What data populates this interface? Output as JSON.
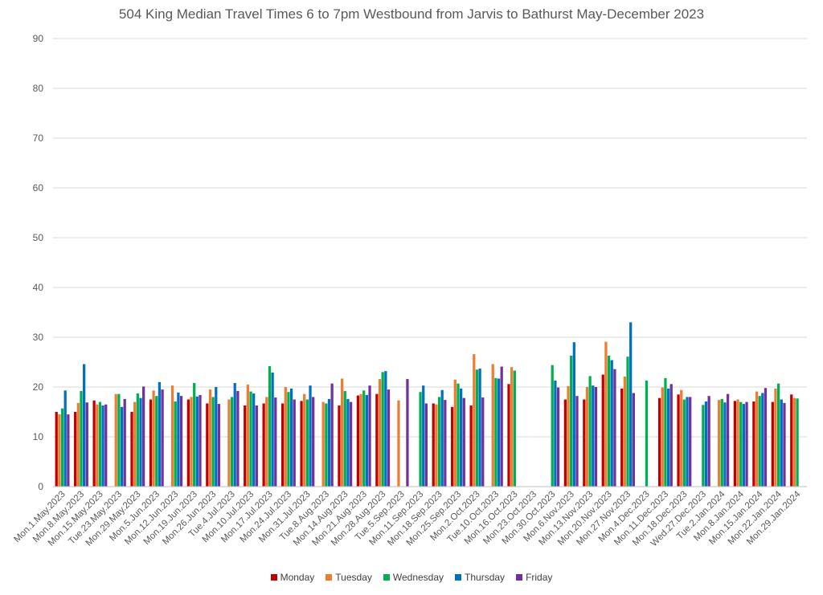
{
  "chart_data": {
    "type": "bar",
    "title": "504 King Median Travel Times 6 to 7pm Westbound from Jarvis to Bathurst May-December 2023",
    "xlabel": "",
    "ylabel": "",
    "ylim": [
      0,
      90
    ],
    "yticks": [
      0,
      10,
      20,
      30,
      40,
      50,
      60,
      70,
      80,
      90
    ],
    "grid": true,
    "legend_position": "bottom",
    "categories": [
      "Mon.1.May.2023",
      "Mon.8.May.2023",
      "Mon.15.May.2023",
      "Tue.23.May.2023",
      "Mon.29.May.2023",
      "Mon.5.Jun.2023",
      "Mon.12.Jun.2023",
      "Mon.19.Jun.2023",
      "Mon.26.Jun.2023",
      "Tue.4.Jul.2023",
      "Mon.10.Jul.2023",
      "Mon.17.Jul.2023",
      "Mon.24.Jul.2023",
      "Mon.31.Jul.2023",
      "Tue.8.Aug.2023",
      "Mon.14.Aug.2023",
      "Mon.21.Aug.2023",
      "Mon.28.Aug.2023",
      "Tue.5.Sep.2023",
      "Mon.11.Sep.2023",
      "Mon.18.Sep.2023",
      "Mon.25.Sep.2023",
      "Mon.2.Oct.2023",
      "Tue.10.Oct.2023",
      "Mon.16.Oct.2023",
      "Mon.23.Oct.2023",
      "Mon.30.Oct.2023",
      "Mon.6.Nov.2023",
      "Mon.13.Nov.2023",
      "Mon.20.Nov.2023",
      "Mon.27.Nov.2023",
      "Mon.4.Dec.2023",
      "Mon.11.Dec.2023",
      "Mon.18.Dec.2023",
      "Wed.27.Dec.2023",
      "Tue.2.Jan.2024",
      "Mon.8.Jan.2024",
      "Mon.15.Jan.2024",
      "Mon.22.Jan.2024",
      "Mon.29.Jan.2024"
    ],
    "series": [
      {
        "name": "Monday",
        "color": "#c00000",
        "values": [
          15.0,
          15.0,
          17.3,
          null,
          15.0,
          17.5,
          null,
          17.5,
          16.7,
          null,
          16.3,
          16.7,
          16.7,
          17.2,
          null,
          16.3,
          18.3,
          18.6,
          null,
          null,
          16.7,
          16.0,
          16.3,
          null,
          20.6,
          null,
          null,
          17.5,
          17.5,
          22.5,
          19.7,
          null,
          17.8,
          18.5,
          null,
          null,
          17.2,
          17.1,
          17.0,
          18.5
        ]
      },
      {
        "name": "Tuesday",
        "color": "#ed7d31",
        "values": [
          14.5,
          16.8,
          16.5,
          18.6,
          17.0,
          19.3,
          20.3,
          18.0,
          19.5,
          17.5,
          20.5,
          18.0,
          20.0,
          18.6,
          17.0,
          21.7,
          18.6,
          21.6,
          17.3,
          null,
          16.5,
          21.5,
          26.6,
          24.6,
          24.0,
          null,
          null,
          20.2,
          20.0,
          29.1,
          22.1,
          null,
          19.9,
          19.4,
          null,
          17.4,
          17.5,
          19.1,
          19.7,
          17.8
        ]
      },
      {
        "name": "Wednesday",
        "color": "#00b050",
        "values": [
          15.7,
          19.2,
          17.0,
          18.6,
          18.7,
          18.2,
          17.1,
          20.8,
          18.0,
          18.0,
          19.1,
          24.2,
          19.0,
          17.5,
          16.7,
          19.2,
          19.3,
          23.0,
          null,
          19.0,
          18.0,
          20.7,
          23.5,
          21.8,
          23.3,
          null,
          24.4,
          26.3,
          22.2,
          26.3,
          26.1,
          21.3,
          21.8,
          17.5,
          16.4,
          17.6,
          17.0,
          18.2,
          20.7,
          17.7
        ]
      },
      {
        "name": "Thursday",
        "color": "#0070c0",
        "values": [
          19.3,
          24.6,
          16.3,
          16.0,
          17.8,
          21.0,
          18.9,
          18.1,
          20.0,
          20.8,
          18.7,
          22.9,
          19.7,
          20.3,
          17.6,
          17.6,
          18.4,
          23.2,
          null,
          20.3,
          19.4,
          19.7,
          23.7,
          21.7,
          null,
          null,
          21.3,
          29.0,
          20.3,
          25.4,
          33.0,
          null,
          19.7,
          18.0,
          17.1,
          16.9,
          16.6,
          18.8,
          17.5,
          null
        ]
      },
      {
        "name": "Friday",
        "color": "#7030a0",
        "values": [
          14.5,
          16.9,
          16.5,
          17.6,
          20.1,
          19.5,
          18.2,
          18.4,
          16.6,
          19.2,
          16.3,
          17.9,
          17.5,
          18.0,
          20.7,
          17.0,
          20.3,
          19.5,
          21.6,
          16.7,
          17.4,
          17.8,
          17.9,
          24.1,
          null,
          null,
          19.9,
          18.2,
          20.0,
          23.6,
          18.8,
          null,
          20.6,
          18.0,
          18.2,
          18.6,
          17.0,
          19.8,
          16.8,
          null
        ]
      }
    ]
  }
}
